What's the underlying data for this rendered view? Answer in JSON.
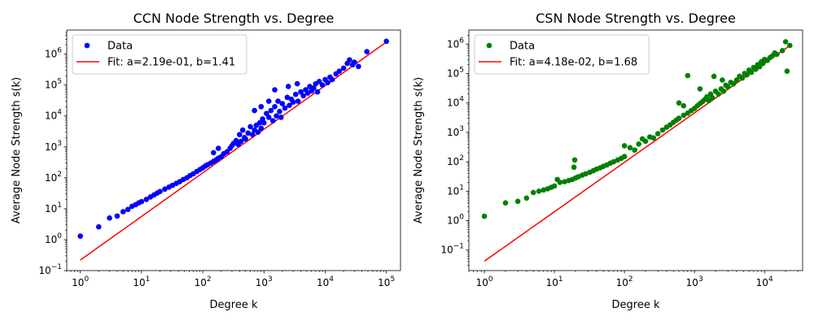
{
  "chart_data": [
    {
      "type": "scatter",
      "title": "CCN Node Strength vs. Degree",
      "xlabel": "Degree k",
      "ylabel": "Average Node Strength s(k)",
      "xscale": "log",
      "yscale": "log",
      "xlim": [
        0.6,
        170000
      ],
      "ylim": [
        0.1,
        6000000
      ],
      "x_ticks": [
        {
          "value": 1,
          "base": "10",
          "exp": "0"
        },
        {
          "value": 10,
          "base": "10",
          "exp": "1"
        },
        {
          "value": 100,
          "base": "10",
          "exp": "2"
        },
        {
          "value": 1000,
          "base": "10",
          "exp": "3"
        },
        {
          "value": 10000,
          "base": "10",
          "exp": "4"
        },
        {
          "value": 100000,
          "base": "10",
          "exp": "5"
        }
      ],
      "y_ticks": [
        {
          "value": 0.1,
          "base": "10",
          "exp": "−1"
        },
        {
          "value": 1,
          "base": "10",
          "exp": "0"
        },
        {
          "value": 10,
          "base": "10",
          "exp": "1"
        },
        {
          "value": 100,
          "base": "10",
          "exp": "2"
        },
        {
          "value": 1000,
          "base": "10",
          "exp": "3"
        },
        {
          "value": 10000,
          "base": "10",
          "exp": "4"
        },
        {
          "value": 100000,
          "base": "10",
          "exp": "5"
        },
        {
          "value": 1000000,
          "base": "10",
          "exp": "6"
        }
      ],
      "legend_position": "top-left",
      "series": [
        {
          "name": "Data",
          "kind": "points",
          "color": "#0000ff",
          "points": [
            [
              1,
              1.3
            ],
            [
              2,
              2.6
            ],
            [
              3,
              5.0
            ],
            [
              4,
              5.8
            ],
            [
              5,
              8.0
            ],
            [
              6,
              9.5
            ],
            [
              7,
              12
            ],
            [
              8,
              13.5
            ],
            [
              9,
              15.5
            ],
            [
              10,
              17
            ],
            [
              12,
              20
            ],
            [
              14,
              24
            ],
            [
              16,
              28
            ],
            [
              18,
              32
            ],
            [
              20,
              36
            ],
            [
              24,
              43
            ],
            [
              28,
              50
            ],
            [
              32,
              57
            ],
            [
              37,
              66
            ],
            [
              42,
              75
            ],
            [
              48,
              88
            ],
            [
              55,
              100
            ],
            [
              62,
              118
            ],
            [
              70,
              135
            ],
            [
              80,
              160
            ],
            [
              90,
              185
            ],
            [
              100,
              210
            ],
            [
              110,
              240
            ],
            [
              120,
              265
            ],
            [
              135,
              300
            ],
            [
              150,
              340
            ],
            [
              165,
              380
            ],
            [
              180,
              430
            ],
            [
              200,
              480
            ],
            [
              150,
              650
            ],
            [
              180,
              900
            ],
            [
              220,
              600
            ],
            [
              250,
              700
            ],
            [
              280,
              900
            ],
            [
              300,
              1100
            ],
            [
              320,
              1300
            ],
            [
              350,
              1600
            ],
            [
              380,
              1200
            ],
            [
              400,
              2500
            ],
            [
              420,
              1500
            ],
            [
              450,
              3500
            ],
            [
              480,
              2000
            ],
            [
              500,
              1800
            ],
            [
              550,
              2800
            ],
            [
              600,
              4500
            ],
            [
              650,
              2500
            ],
            [
              700,
              3500
            ],
            [
              750,
              5000
            ],
            [
              800,
              3000
            ],
            [
              850,
              6000
            ],
            [
              900,
              4000
            ],
            [
              950,
              8000
            ],
            [
              1000,
              6000
            ],
            [
              1100,
              12000
            ],
            [
              1200,
              9000
            ],
            [
              1300,
              15000
            ],
            [
              1400,
              7000
            ],
            [
              1500,
              20000
            ],
            [
              1600,
              10000
            ],
            [
              1700,
              30000
            ],
            [
              1800,
              14000
            ],
            [
              1900,
              9000
            ],
            [
              2000,
              25000
            ],
            [
              2200,
              18000
            ],
            [
              2400,
              40000
            ],
            [
              2600,
              22000
            ],
            [
              2800,
              35000
            ],
            [
              3000,
              28000
            ],
            [
              3300,
              50000
            ],
            [
              3600,
              30000
            ],
            [
              4000,
              60000
            ],
            [
              4400,
              45000
            ],
            [
              4800,
              70000
            ],
            [
              5200,
              55000
            ],
            [
              5600,
              90000
            ],
            [
              6000,
              65000
            ],
            [
              6500,
              80000
            ],
            [
              7000,
              110000
            ],
            [
              7500,
              60000
            ],
            [
              8000,
              130000
            ],
            [
              9000,
              100000
            ],
            [
              10000,
              150000
            ],
            [
              11000,
              120000
            ],
            [
              12000,
              180000
            ],
            [
              13000,
              150000
            ],
            [
              15000,
              230000
            ],
            [
              17000,
              280000
            ],
            [
              20000,
              350000
            ],
            [
              23000,
              500000
            ],
            [
              25000,
              650000
            ],
            [
              28000,
              450000
            ],
            [
              30000,
              550000
            ],
            [
              35000,
              400000
            ],
            [
              48000,
              1200000
            ],
            [
              100000,
              2600000
            ],
            [
              1500,
              70000
            ],
            [
              2500,
              90000
            ],
            [
              3500,
              110000
            ],
            [
              1200,
              30000
            ],
            [
              900,
              20000
            ],
            [
              700,
              15000
            ]
          ]
        },
        {
          "name": "Fit: a=2.19e-01, b=1.41",
          "kind": "line",
          "color": "#ff0000",
          "a": 0.219,
          "b": 1.41,
          "x_range": [
            1,
            100000
          ]
        }
      ]
    },
    {
      "type": "scatter",
      "title": "CSN Node Strength vs. Degree",
      "xlabel": "Degree k",
      "ylabel": "Average Node Strength s(k)",
      "xscale": "log",
      "yscale": "log",
      "xlim": [
        0.6,
        35000
      ],
      "ylim": [
        0.02,
        3000000
      ],
      "x_ticks": [
        {
          "value": 1,
          "base": "10",
          "exp": "0"
        },
        {
          "value": 10,
          "base": "10",
          "exp": "1"
        },
        {
          "value": 100,
          "base": "10",
          "exp": "2"
        },
        {
          "value": 1000,
          "base": "10",
          "exp": "3"
        },
        {
          "value": 10000,
          "base": "10",
          "exp": "4"
        }
      ],
      "y_ticks": [
        {
          "value": 0.1,
          "base": "10",
          "exp": "−1"
        },
        {
          "value": 1,
          "base": "10",
          "exp": "0"
        },
        {
          "value": 10,
          "base": "10",
          "exp": "1"
        },
        {
          "value": 100,
          "base": "10",
          "exp": "2"
        },
        {
          "value": 1000,
          "base": "10",
          "exp": "3"
        },
        {
          "value": 10000,
          "base": "10",
          "exp": "4"
        },
        {
          "value": 100000,
          "base": "10",
          "exp": "5"
        },
        {
          "value": 1000000,
          "base": "10",
          "exp": "6"
        }
      ],
      "legend_position": "top-left",
      "series": [
        {
          "name": "Data",
          "kind": "points",
          "color": "#008000",
          "points": [
            [
              1,
              1.4
            ],
            [
              2,
              4.0
            ],
            [
              3,
              4.5
            ],
            [
              4,
              5.8
            ],
            [
              5,
              9
            ],
            [
              6,
              10
            ],
            [
              7,
              11
            ],
            [
              8,
              12
            ],
            [
              9,
              13.5
            ],
            [
              10,
              15
            ],
            [
              11,
              25
            ],
            [
              12,
              20
            ],
            [
              14,
              21
            ],
            [
              16,
              23
            ],
            [
              18,
              25
            ],
            [
              19,
              65
            ],
            [
              19.5,
              115
            ],
            [
              20,
              28
            ],
            [
              22,
              31
            ],
            [
              25,
              35
            ],
            [
              28,
              39
            ],
            [
              32,
              44
            ],
            [
              36,
              50
            ],
            [
              40,
              56
            ],
            [
              45,
              62
            ],
            [
              50,
              70
            ],
            [
              56,
              78
            ],
            [
              63,
              90
            ],
            [
              70,
              100
            ],
            [
              80,
              115
            ],
            [
              90,
              130
            ],
            [
              100,
              150
            ],
            [
              100,
              350
            ],
            [
              120,
              300
            ],
            [
              140,
              250
            ],
            [
              160,
              400
            ],
            [
              180,
              600
            ],
            [
              200,
              500
            ],
            [
              230,
              700
            ],
            [
              260,
              650
            ],
            [
              300,
              900
            ],
            [
              350,
              1200
            ],
            [
              400,
              1500
            ],
            [
              450,
              1800
            ],
            [
              500,
              2200
            ],
            [
              550,
              2600
            ],
            [
              600,
              3000
            ],
            [
              700,
              3800
            ],
            [
              800,
              4500
            ],
            [
              800,
              85000
            ],
            [
              900,
              5500
            ],
            [
              1000,
              6500
            ],
            [
              1100,
              8000
            ],
            [
              1200,
              9500
            ],
            [
              1300,
              11000
            ],
            [
              1400,
              13000
            ],
            [
              1500,
              16000
            ],
            [
              1600,
              12000
            ],
            [
              1700,
              20000
            ],
            [
              1800,
              15000
            ],
            [
              1900,
              80000
            ],
            [
              2000,
              25000
            ],
            [
              2200,
              20000
            ],
            [
              2400,
              30000
            ],
            [
              2600,
              25000
            ],
            [
              2800,
              40000
            ],
            [
              3000,
              35000
            ],
            [
              3300,
              50000
            ],
            [
              3600,
              45000
            ],
            [
              4000,
              60000
            ],
            [
              4400,
              80000
            ],
            [
              4800,
              70000
            ],
            [
              5200,
              100000
            ],
            [
              5600,
              90000
            ],
            [
              6000,
              130000
            ],
            [
              6500,
              110000
            ],
            [
              7000,
              160000
            ],
            [
              7500,
              140000
            ],
            [
              8000,
              200000
            ],
            [
              8500,
              170000
            ],
            [
              9000,
              250000
            ],
            [
              9500,
              220000
            ],
            [
              10000,
              300000
            ],
            [
              11000,
              280000
            ],
            [
              12000,
              350000
            ],
            [
              13000,
              400000
            ],
            [
              14000,
              500000
            ],
            [
              15000,
              450000
            ],
            [
              18000,
              600000
            ],
            [
              20000,
              1200000
            ],
            [
              21000,
              120000
            ],
            [
              23000,
              900000
            ],
            [
              700,
              8000
            ],
            [
              1200,
              30000
            ],
            [
              2500,
              60000
            ],
            [
              600,
              10000
            ]
          ]
        },
        {
          "name": "Fit: a=4.18e-02, b=1.68",
          "kind": "line",
          "color": "#ff0000",
          "a": 0.0418,
          "b": 1.68,
          "x_range": [
            1,
            24000
          ]
        }
      ]
    }
  ]
}
